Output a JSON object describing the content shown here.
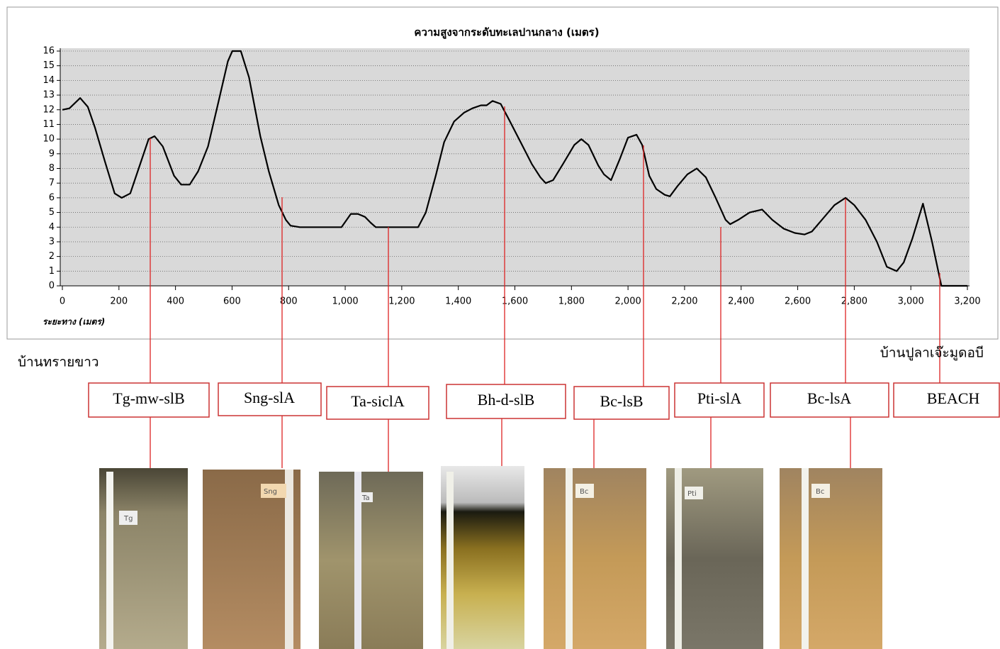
{
  "chart_data": {
    "type": "line",
    "title": "ความสูงจากระดับทะเลปานกลาง (เมตร)",
    "x_label": "ระยะทาง (เมตร)",
    "x": [
      0,
      25,
      63,
      90,
      115,
      150,
      185,
      210,
      240,
      270,
      305,
      326,
      355,
      395,
      420,
      450,
      480,
      515,
      555,
      585,
      601,
      631,
      660,
      700,
      730,
      765,
      790,
      807,
      840,
      987,
      1020,
      1045,
      1070,
      1090,
      1108,
      1258,
      1285,
      1320,
      1350,
      1385,
      1420,
      1450,
      1480,
      1500,
      1521,
      1550,
      1580,
      1620,
      1660,
      1690,
      1709,
      1735,
      1770,
      1810,
      1835,
      1860,
      1895,
      1915,
      1940,
      1970,
      2000,
      2030,
      2050,
      2075,
      2100,
      2130,
      2148,
      2175,
      2210,
      2243,
      2275,
      2310,
      2345,
      2361,
      2390,
      2430,
      2474,
      2510,
      2550,
      2590,
      2624,
      2650,
      2690,
      2730,
      2769,
      2800,
      2840,
      2880,
      2915,
      2950,
      2975,
      3005,
      3043,
      3075,
      3108,
      3200
    ],
    "values": [
      12,
      12.1,
      12.8,
      12.2,
      10.8,
      8.5,
      6.3,
      6,
      6.3,
      8,
      10,
      10.2,
      9.5,
      7.5,
      6.9,
      6.9,
      7.8,
      9.5,
      12.8,
      15.3,
      16,
      16,
      14.2,
      10.2,
      7.8,
      5.5,
      4.5,
      4.1,
      4,
      4,
      4.9,
      4.9,
      4.7,
      4.3,
      4,
      4,
      5,
      7.5,
      9.8,
      11.2,
      11.8,
      12.1,
      12.3,
      12.3,
      12.6,
      12.4,
      11.3,
      9.8,
      8.3,
      7.4,
      7,
      7.2,
      8.3,
      9.6,
      10,
      9.6,
      8.2,
      7.6,
      7.2,
      8.6,
      10.1,
      10.3,
      9.6,
      7.5,
      6.6,
      6.2,
      6.1,
      6.8,
      7.6,
      8,
      7.4,
      6,
      4.5,
      4.2,
      4.5,
      5,
      5.2,
      4.5,
      3.9,
      3.6,
      3.5,
      3.7,
      4.6,
      5.5,
      6,
      5.5,
      4.5,
      3,
      1.3,
      1,
      1.6,
      3.2,
      5.6,
      3,
      0,
      0
    ],
    "color": "#000000",
    "xlim": [
      0,
      3200
    ],
    "xticks": [
      0,
      200,
      400,
      600,
      800,
      {
        "value": 1000,
        "label": "1,000"
      },
      {
        "value": 1200,
        "label": "1,200"
      },
      {
        "value": 1400,
        "label": "1,400"
      },
      {
        "value": 1600,
        "label": "1,600"
      },
      {
        "value": 1800,
        "label": "1,800"
      },
      {
        "value": 2000,
        "label": "2,000"
      },
      {
        "value": 2200,
        "label": "2,200"
      },
      {
        "value": 2400,
        "label": "2,400"
      },
      {
        "value": 2600,
        "label": "2,600"
      },
      {
        "value": 2800,
        "label": "2,800"
      },
      {
        "value": 3000,
        "label": "3,000"
      },
      {
        "value": 3200,
        "label": "3,200"
      }
    ],
    "ylim": [
      0,
      16
    ],
    "yticks": [
      0,
      1,
      2,
      3,
      4,
      5,
      6,
      7,
      8,
      9,
      10,
      11,
      12,
      13,
      14,
      15,
      16
    ],
    "grid": true
  },
  "places": [
    "บ้านทรายขาว",
    "บ้านปูลาเจ๊ะมูดอบี"
  ],
  "soil_series": [
    "Tg-mw-slB",
    "Sng-slA",
    "Ta-siclA",
    "Bh-d-slB",
    "Bc-lsB",
    "Pti-slA",
    "Bc-lsA",
    "BEACH"
  ],
  "photo_tags": [
    "Tg",
    "Sng",
    "Ta",
    "Bc",
    "Pti",
    "Bc"
  ]
}
